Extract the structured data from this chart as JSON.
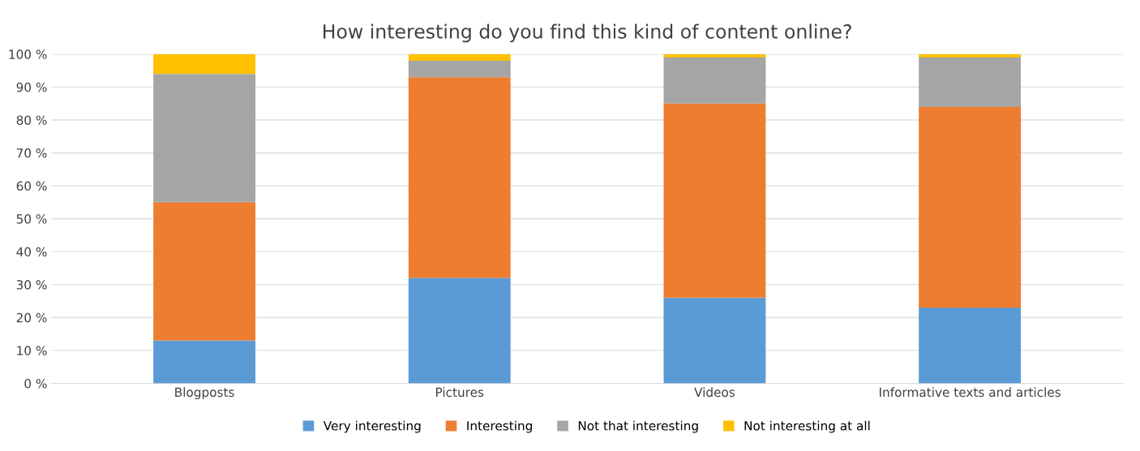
{
  "chart_data": {
    "type": "bar",
    "title": "How interesting do you find this kind of content online?",
    "categories": [
      "Blogposts",
      "Pictures",
      "Videos",
      "Informative texts and articles"
    ],
    "stacked": true,
    "series": [
      {
        "name": "Very interesting",
        "color": "#5b9bd5",
        "values": [
          13,
          32,
          26,
          23
        ]
      },
      {
        "name": "Interesting",
        "color": "#ed7d31",
        "values": [
          42,
          61,
          59,
          61
        ]
      },
      {
        "name": "Not that interesting",
        "color": "#a5a5a5",
        "values": [
          39,
          5,
          14,
          15
        ]
      },
      {
        "name": "Not interesting at all",
        "color": "#ffc000",
        "values": [
          6,
          2,
          1,
          1
        ]
      }
    ],
    "ylim": [
      0,
      100
    ],
    "yticks": [
      {
        "value": 0,
        "label": "0 %"
      },
      {
        "value": 10,
        "label": "10 %"
      },
      {
        "value": 20,
        "label": "20 %"
      },
      {
        "value": 30,
        "label": "30 %"
      },
      {
        "value": 40,
        "label": "40 %"
      },
      {
        "value": 50,
        "label": "50 %"
      },
      {
        "value": 60,
        "label": "60 %"
      },
      {
        "value": 70,
        "label": "70 %"
      },
      {
        "value": 80,
        "label": "80 %"
      },
      {
        "value": 90,
        "label": "90 %"
      },
      {
        "value": 100,
        "label": "100 %"
      }
    ],
    "grid": "y",
    "legend": "bottom"
  }
}
